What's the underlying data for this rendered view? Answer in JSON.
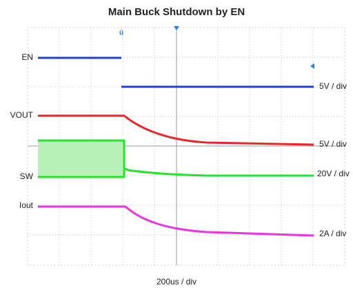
{
  "title": "Main Buck Shutdown by EN",
  "channels": [
    {
      "name": "EN",
      "scale": "5V / div",
      "color": "#1f3fd8"
    },
    {
      "name": "VOUT",
      "scale": "5V / div",
      "color": "#e8262a"
    },
    {
      "name": "SW",
      "scale": "20V / div",
      "color": "#22e52a"
    },
    {
      "name": "Iout",
      "scale": "2A / div",
      "color": "#e833e0"
    }
  ],
  "timebase": "200us / div"
}
